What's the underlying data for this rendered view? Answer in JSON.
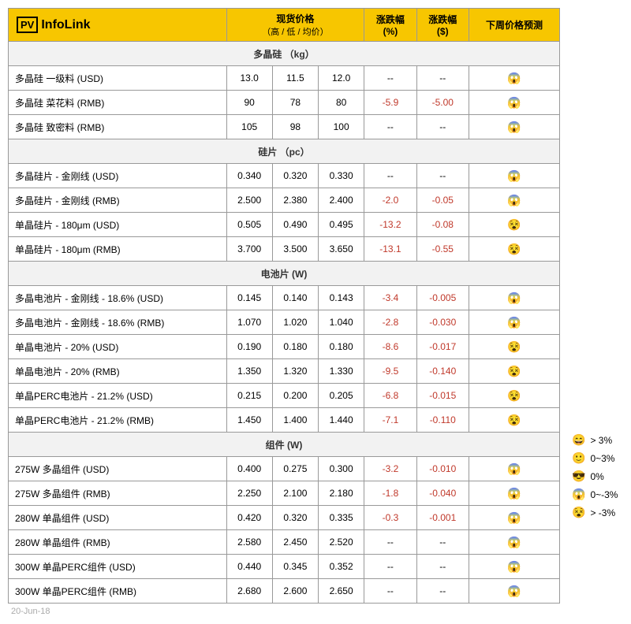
{
  "logo": {
    "pv": "PV",
    "name": "InfoLink"
  },
  "headers": {
    "price": "现货价格",
    "price_sub": "（高 / 低 / 均价）",
    "pct": "涨跌幅\n(%)",
    "abs": "涨跌幅\n($)",
    "forecast": "下周价格预测"
  },
  "sections": [
    {
      "title": "多晶硅 （kg）",
      "rows": [
        {
          "name": "多晶硅 一级料 (USD)",
          "high": "13.0",
          "low": "11.5",
          "avg": "12.0",
          "pct": "--",
          "abs": "--",
          "icon": "😱"
        },
        {
          "name": "多晶硅 菜花料 (RMB)",
          "high": "90",
          "low": "78",
          "avg": "80",
          "pct": "-5.9",
          "abs": "-5.00",
          "icon": "😱"
        },
        {
          "name": "多晶硅 致密料 (RMB)",
          "high": "105",
          "low": "98",
          "avg": "100",
          "pct": "--",
          "abs": "--",
          "icon": "😱"
        }
      ]
    },
    {
      "title": "硅片 （pc）",
      "rows": [
        {
          "name": "多晶硅片 - 金刚线 (USD)",
          "high": "0.340",
          "low": "0.320",
          "avg": "0.330",
          "pct": "--",
          "abs": "--",
          "icon": "😱"
        },
        {
          "name": "多晶硅片 - 金刚线 (RMB)",
          "high": "2.500",
          "low": "2.380",
          "avg": "2.400",
          "pct": "-2.0",
          "abs": "-0.05",
          "icon": "😱"
        },
        {
          "name": "单晶硅片 - 180μm (USD)",
          "high": "0.505",
          "low": "0.490",
          "avg": "0.495",
          "pct": "-13.2",
          "abs": "-0.08",
          "icon": "😵"
        },
        {
          "name": "单晶硅片 - 180μm (RMB)",
          "high": "3.700",
          "low": "3.500",
          "avg": "3.650",
          "pct": "-13.1",
          "abs": "-0.55",
          "icon": "😵"
        }
      ]
    },
    {
      "title": "电池片 (W)",
      "rows": [
        {
          "name": "多晶电池片 - 金刚线 - 18.6% (USD)",
          "high": "0.145",
          "low": "0.140",
          "avg": "0.143",
          "pct": "-3.4",
          "abs": "-0.005",
          "icon": "😱"
        },
        {
          "name": "多晶电池片 - 金刚线 - 18.6% (RMB)",
          "high": "1.070",
          "low": "1.020",
          "avg": "1.040",
          "pct": "-2.8",
          "abs": "-0.030",
          "icon": "😱"
        },
        {
          "name": "单晶电池片 - 20% (USD)",
          "high": "0.190",
          "low": "0.180",
          "avg": "0.180",
          "pct": "-8.6",
          "abs": "-0.017",
          "icon": "😵"
        },
        {
          "name": "单晶电池片 - 20% (RMB)",
          "high": "1.350",
          "low": "1.320",
          "avg": "1.330",
          "pct": "-9.5",
          "abs": "-0.140",
          "icon": "😵"
        },
        {
          "name": "单晶PERC电池片 - 21.2% (USD)",
          "high": "0.215",
          "low": "0.200",
          "avg": "0.205",
          "pct": "-6.8",
          "abs": "-0.015",
          "icon": "😵"
        },
        {
          "name": "单晶PERC电池片 - 21.2% (RMB)",
          "high": "1.450",
          "low": "1.400",
          "avg": "1.440",
          "pct": "-7.1",
          "abs": "-0.110",
          "icon": "😵"
        }
      ]
    },
    {
      "title": "组件 (W)",
      "rows": [
        {
          "name": "275W 多晶组件 (USD)",
          "high": "0.400",
          "low": "0.275",
          "avg": "0.300",
          "pct": "-3.2",
          "abs": "-0.010",
          "icon": "😱"
        },
        {
          "name": "275W 多晶组件 (RMB)",
          "high": "2.250",
          "low": "2.100",
          "avg": "2.180",
          "pct": "-1.8",
          "abs": "-0.040",
          "icon": "😱"
        },
        {
          "name": "280W 单晶组件 (USD)",
          "high": "0.420",
          "low": "0.320",
          "avg": "0.335",
          "pct": "-0.3",
          "abs": "-0.001",
          "icon": "😱"
        },
        {
          "name": "280W 单晶组件 (RMB)",
          "high": "2.580",
          "low": "2.450",
          "avg": "2.520",
          "pct": "--",
          "abs": "--",
          "icon": "😱"
        },
        {
          "name": "300W 单晶PERC组件 (USD)",
          "high": "0.440",
          "low": "0.345",
          "avg": "0.352",
          "pct": "--",
          "abs": "--",
          "icon": "😱"
        },
        {
          "name": "300W 单晶PERC组件 (RMB)",
          "high": "2.680",
          "low": "2.600",
          "avg": "2.650",
          "pct": "--",
          "abs": "--",
          "icon": "😱"
        }
      ]
    }
  ],
  "footer_date": "20-Jun-18",
  "legend": [
    {
      "icon": "😄",
      "text": "> 3%"
    },
    {
      "icon": "🙂",
      "text": "0~3%"
    },
    {
      "icon": "😎",
      "text": "0%"
    },
    {
      "icon": "😱",
      "text": "0~-3%"
    },
    {
      "icon": "😵",
      "text": "> -3%"
    }
  ]
}
